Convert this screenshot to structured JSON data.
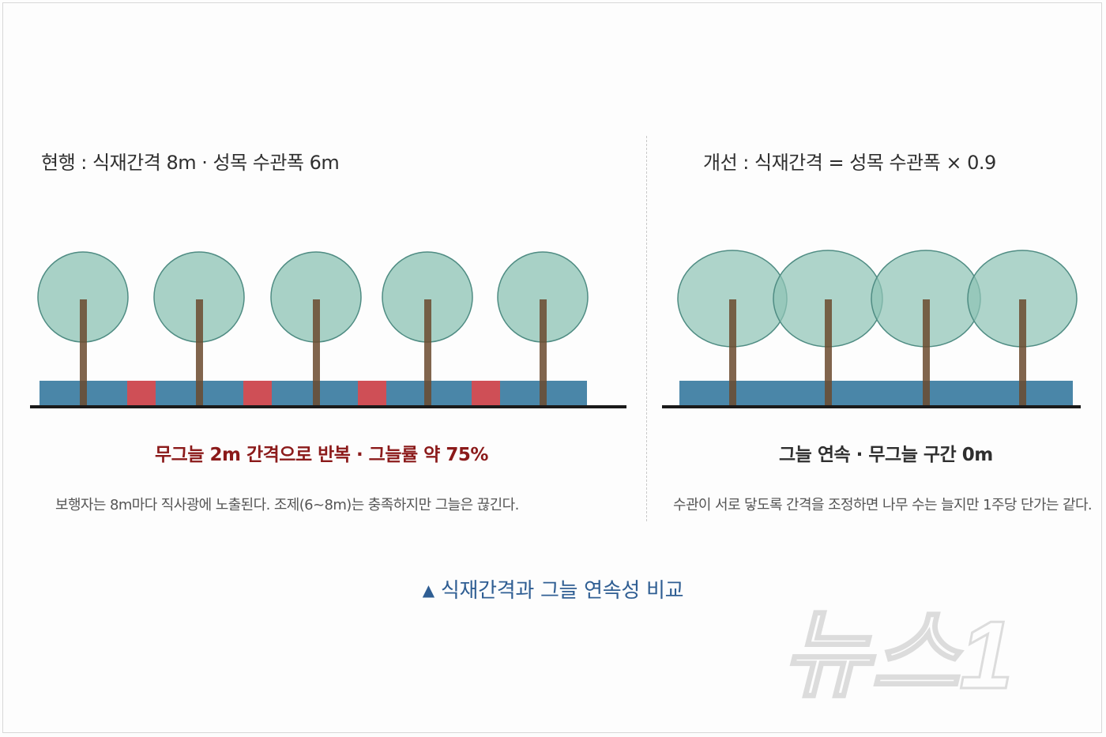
{
  "left": {
    "heading": "현행 : 식재간격 8m · 성목 수관폭 6m",
    "summary": "무그늘 2m 간격으로 반복 · 그늘률 약 75%",
    "note": "보행자는 8m마다 직사광에 노출된다. 조제(6~8m)는 충족하지만 그늘은 끊긴다.",
    "summary_color": "#8b1a1a"
  },
  "right": {
    "heading": "개선 : 식재간격 = 성목 수관폭 × 0.9",
    "summary": "그늘 연속 · 무그늘 구간 0m",
    "note": "수관이 서로 닿도록 간격을 조정하면 나무 수는 늘지만 1주당 단가는 같다.",
    "summary_color": "#2f2f2f"
  },
  "caption": {
    "marker": "▲",
    "text": "식재간격과 그늘 연속성 비교"
  },
  "watermark": {
    "text": "뉴스1"
  },
  "colors": {
    "canopy": "#8fc4b6",
    "canopy_stroke": "#4f8c83",
    "trunk": "#6b4a2e",
    "shade_band": "#4a86a8",
    "sun_gap": "#cf4f56",
    "ground": "#1a1a1a"
  }
}
